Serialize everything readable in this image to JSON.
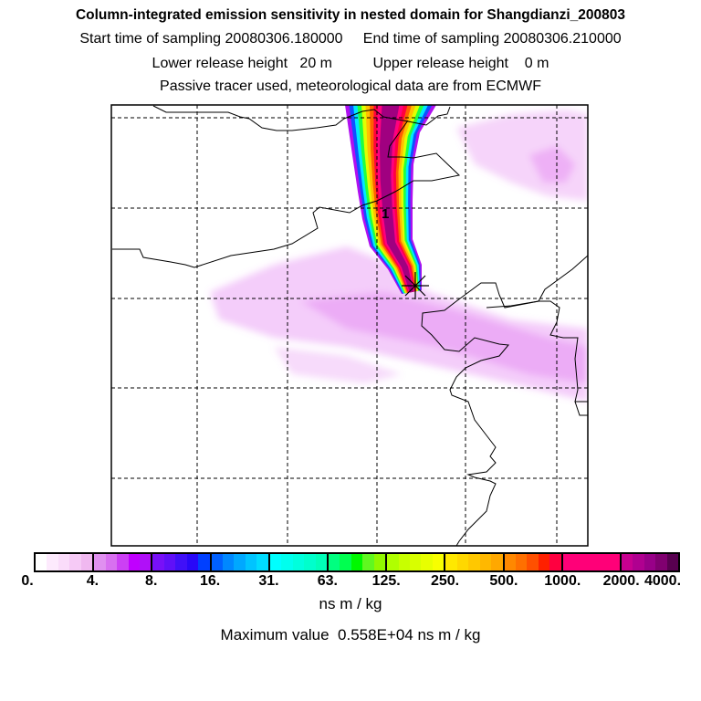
{
  "header": {
    "title": "Column-integrated emission sensitivity in nested domain for Shangdianzi_200803",
    "sampling_line": "Start time of sampling 20080306.180000     End time of sampling 20080306.210000",
    "release_line": "Lower release height   20 m          Upper release height    0 m",
    "tracer_line": "Passive tracer used, meteorological data are from ECMWF"
  },
  "map": {
    "release_marker_label": "1",
    "release_marker_icon": "asterisk-star-icon",
    "plume_colors": [
      "#b010f0",
      "#1050ff",
      "#00e8ff",
      "#20ff40",
      "#e0ff00",
      "#ffc000",
      "#ff6000",
      "#ff0040",
      "#ff0080",
      "#a00080"
    ],
    "haze_color": "#e070f0"
  },
  "colorbar": {
    "tick_labels": [
      "0.",
      "4.",
      "8.",
      "16.",
      "31.",
      "63.",
      "125.",
      "250.",
      "500.",
      "1000.",
      "2000.",
      "4000."
    ],
    "segments": [
      [
        "#ffffff",
        "#fdeafd",
        "#fadcfa",
        "#f6caf6",
        "#f0b8f0"
      ],
      [
        "#e090f0",
        "#d870f0",
        "#cc40f4",
        "#c000ff",
        "#b010f8"
      ],
      [
        "#7810f8",
        "#6010f8",
        "#4010f8",
        "#2808f8",
        "#0040ff"
      ],
      [
        "#0060ff",
        "#0088ff",
        "#00a8ff",
        "#00c4ff",
        "#00dcff"
      ],
      [
        "#00ffff",
        "#00ffee",
        "#00ffdd",
        "#00ffcc",
        "#00ffb8"
      ],
      [
        "#00ff80",
        "#00ff50",
        "#00f800",
        "#60f820",
        "#90f800"
      ],
      [
        "#b0ff00",
        "#c8ff00",
        "#d8ff00",
        "#e8ff00",
        "#f8ff00"
      ],
      [
        "#ffe800",
        "#ffd800",
        "#ffc800",
        "#ffb800",
        "#ffa800"
      ],
      [
        "#ff8800",
        "#ff7000",
        "#ff5000",
        "#ff2000",
        "#ff0040"
      ],
      [
        "#ff0078",
        "#ff0078",
        "#ff0078",
        "#ff0078",
        "#ff0078"
      ],
      [
        "#c80090",
        "#b00090",
        "#980088",
        "#800070",
        "#580050"
      ]
    ],
    "units": "ns m / kg",
    "max_value_line": "Maximum value  0.558E+04 ns m / kg"
  }
}
